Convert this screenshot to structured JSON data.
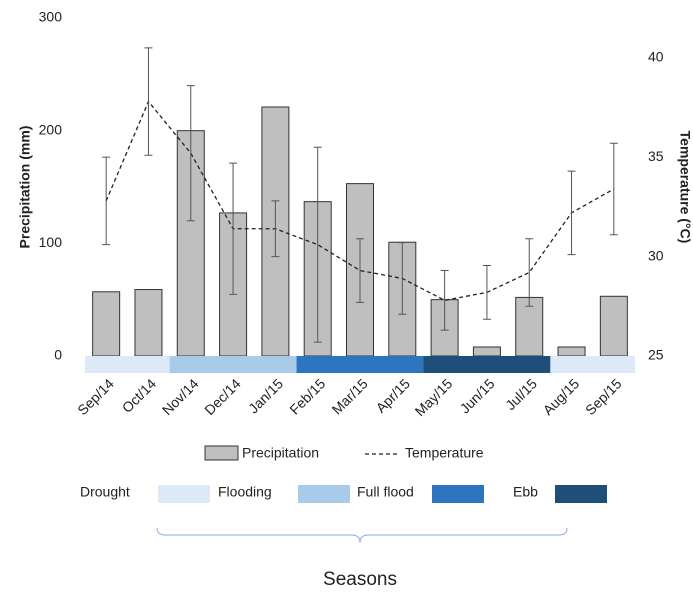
{
  "chart_data": {
    "type": "bar",
    "categories": [
      "Sep/14",
      "Oct/14",
      "Nov/14",
      "Dec/14",
      "Jan/15",
      "Feb/15",
      "Mar/15",
      "Apr/15",
      "May/15",
      "Jun/15",
      "Jul/15",
      "Aug/15",
      "Sep/15"
    ],
    "ylabel": "Precipitation (mm)",
    "y2label": "Temperature (°C)",
    "ylim": [
      0,
      300
    ],
    "yticks": [
      0,
      100,
      200,
      300
    ],
    "y2lim": [
      25,
      42
    ],
    "y2ticks": [
      25,
      30,
      35,
      40
    ],
    "series": [
      {
        "name": "Precipitation",
        "type": "bar",
        "color": "#bfbfbf",
        "values": [
          57,
          59,
          200,
          127,
          221,
          137,
          153,
          101,
          50,
          8,
          52,
          8,
          53
        ]
      },
      {
        "name": "Temperature",
        "type": "line",
        "axis": "y2",
        "color": "#222222",
        "values": [
          32.8,
          37.8,
          35.2,
          31.4,
          31.4,
          30.6,
          29.3,
          28.9,
          27.8,
          28.2,
          29.2,
          32.2,
          33.4
        ],
        "errors": [
          2.2,
          2.7,
          3.4,
          3.3,
          1.4,
          4.9,
          1.6,
          1.8,
          1.5,
          1.35,
          1.7,
          2.1,
          2.3
        ]
      }
    ],
    "seasons": {
      "title": "Seasons",
      "items": [
        {
          "name": "Drought",
          "color": "#dce9f6"
        },
        {
          "name": "Flooding",
          "color": "#a9cbea"
        },
        {
          "name": "Full flood",
          "color": "#2e75c0"
        },
        {
          "name": "Ebb",
          "color": "#1f4e79"
        }
      ]
    }
  }
}
